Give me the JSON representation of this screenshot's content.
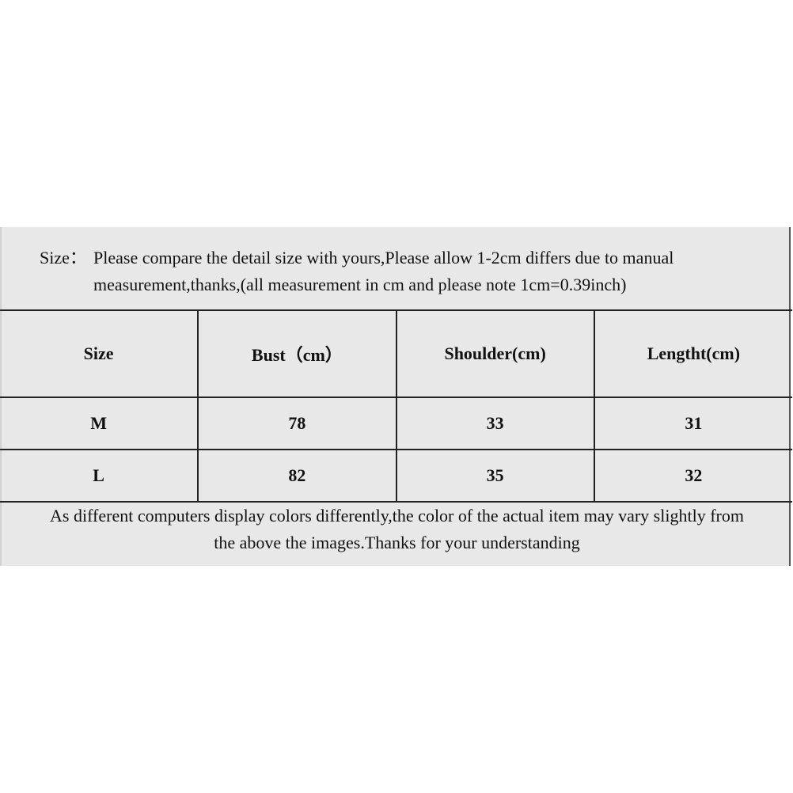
{
  "note": {
    "label": "Size：",
    "line1": "Please compare the detail size with yours,Please allow 1-2cm differs due to manual",
    "line2": "measurement,thanks,(all measurement in cm and please note 1cm=0.39inch)"
  },
  "table": {
    "headers": [
      "Size",
      "Bust（cm）",
      "Shoulder(cm)",
      "Lengtht(cm)"
    ],
    "rows": [
      [
        "M",
        "78",
        "33",
        "31"
      ],
      [
        "L",
        "82",
        "35",
        "32"
      ]
    ]
  },
  "footer": {
    "line1": "As different computers display colors differently,the color of the actual item may vary slightly from",
    "line2": "the above the images.Thanks for your understanding"
  }
}
